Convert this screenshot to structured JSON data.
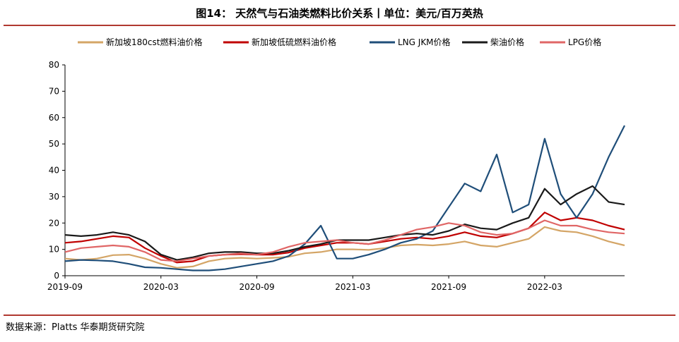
{
  "header": {
    "title": "图14：  天然气与石油类燃料比价关系丨单位：美元/百万英热"
  },
  "footer": {
    "source": "数据来源：Platts 华泰期货研究院"
  },
  "colors": {
    "rule": "#b0382f",
    "axis": "#000000"
  },
  "chart_data": {
    "type": "line",
    "title": "天然气与石油类燃料比价关系丨单位：美元/百万英热",
    "xlabel": "",
    "ylabel": "",
    "ylim": [
      0,
      80
    ],
    "yticks": [
      0,
      10,
      20,
      30,
      40,
      50,
      60,
      70,
      80
    ],
    "xlim": [
      "2019-09",
      "2022-08"
    ],
    "xticks": [
      "2019-09",
      "2020-03",
      "2020-09",
      "2021-03",
      "2021-09",
      "2022-03"
    ],
    "grid": false,
    "legend": "top",
    "series": [
      {
        "name": "新加坡180cst燃料油价格",
        "color": "#d4a566",
        "points": [
          [
            "2019-09",
            6.5
          ],
          [
            "2019-10",
            6.0
          ],
          [
            "2019-11",
            6.5
          ],
          [
            "2019-12",
            7.8
          ],
          [
            "2020-01",
            8.0
          ],
          [
            "2020-02",
            6.5
          ],
          [
            "2020-03",
            4.5
          ],
          [
            "2020-04",
            3.0
          ],
          [
            "2020-05",
            3.5
          ],
          [
            "2020-06",
            5.5
          ],
          [
            "2020-07",
            6.5
          ],
          [
            "2020-08",
            6.8
          ],
          [
            "2020-09",
            6.5
          ],
          [
            "2020-10",
            6.8
          ],
          [
            "2020-11",
            7.2
          ],
          [
            "2020-12",
            8.5
          ],
          [
            "2021-01",
            9.0
          ],
          [
            "2021-02",
            10.0
          ],
          [
            "2021-03",
            10.0
          ],
          [
            "2021-04",
            9.8
          ],
          [
            "2021-05",
            10.5
          ],
          [
            "2021-06",
            11.5
          ],
          [
            "2021-07",
            11.8
          ],
          [
            "2021-08",
            11.5
          ],
          [
            "2021-09",
            12.0
          ],
          [
            "2021-10",
            13.0
          ],
          [
            "2021-11",
            11.5
          ],
          [
            "2021-12",
            11.0
          ],
          [
            "2022-01",
            12.5
          ],
          [
            "2022-02",
            14.0
          ],
          [
            "2022-03",
            18.5
          ],
          [
            "2022-04",
            17.0
          ],
          [
            "2022-05",
            16.5
          ],
          [
            "2022-06",
            15.0
          ],
          [
            "2022-07",
            13.0
          ],
          [
            "2022-08",
            11.5
          ]
        ]
      },
      {
        "name": "新加坡低硫燃料油价格",
        "color": "#c00000",
        "points": [
          [
            "2019-09",
            12.5
          ],
          [
            "2019-10",
            13.0
          ],
          [
            "2019-11",
            14.0
          ],
          [
            "2019-12",
            15.0
          ],
          [
            "2020-01",
            14.5
          ],
          [
            "2020-02",
            10.5
          ],
          [
            "2020-03",
            7.5
          ],
          [
            "2020-04",
            5.0
          ],
          [
            "2020-05",
            5.5
          ],
          [
            "2020-06",
            7.5
          ],
          [
            "2020-07",
            8.0
          ],
          [
            "2020-08",
            8.2
          ],
          [
            "2020-09",
            8.0
          ],
          [
            "2020-10",
            8.0
          ],
          [
            "2020-11",
            8.8
          ],
          [
            "2020-12",
            10.5
          ],
          [
            "2021-01",
            11.5
          ],
          [
            "2021-02",
            12.5
          ],
          [
            "2021-03",
            12.5
          ],
          [
            "2021-04",
            12.0
          ],
          [
            "2021-05",
            13.0
          ],
          [
            "2021-06",
            14.0
          ],
          [
            "2021-07",
            14.5
          ],
          [
            "2021-08",
            14.0
          ],
          [
            "2021-09",
            15.0
          ],
          [
            "2021-10",
            16.5
          ],
          [
            "2021-11",
            15.0
          ],
          [
            "2021-12",
            14.5
          ],
          [
            "2022-01",
            16.0
          ],
          [
            "2022-02",
            18.0
          ],
          [
            "2022-03",
            24.0
          ],
          [
            "2022-04",
            21.0
          ],
          [
            "2022-05",
            22.0
          ],
          [
            "2022-06",
            21.0
          ],
          [
            "2022-07",
            19.0
          ],
          [
            "2022-08",
            17.5
          ]
        ]
      },
      {
        "name": "LNG JKM价格",
        "color": "#1f4e79",
        "points": [
          [
            "2019-09",
            5.5
          ],
          [
            "2019-10",
            6.0
          ],
          [
            "2019-11",
            5.8
          ],
          [
            "2019-12",
            5.5
          ],
          [
            "2020-01",
            4.5
          ],
          [
            "2020-02",
            3.2
          ],
          [
            "2020-03",
            3.0
          ],
          [
            "2020-04",
            2.5
          ],
          [
            "2020-05",
            2.0
          ],
          [
            "2020-06",
            2.0
          ],
          [
            "2020-07",
            2.5
          ],
          [
            "2020-08",
            3.5
          ],
          [
            "2020-09",
            4.5
          ],
          [
            "2020-10",
            5.5
          ],
          [
            "2020-11",
            7.5
          ],
          [
            "2020-12",
            12.0
          ],
          [
            "2021-01",
            19.0
          ],
          [
            "2021-02",
            6.5
          ],
          [
            "2021-03",
            6.5
          ],
          [
            "2021-04",
            8.0
          ],
          [
            "2021-05",
            10.0
          ],
          [
            "2021-06",
            12.5
          ],
          [
            "2021-07",
            14.0
          ],
          [
            "2021-08",
            17.0
          ],
          [
            "2021-09",
            26.0
          ],
          [
            "2021-10",
            35.0
          ],
          [
            "2021-11",
            32.0
          ],
          [
            "2021-12",
            46.0
          ],
          [
            "2022-01",
            24.0
          ],
          [
            "2022-02",
            27.0
          ],
          [
            "2022-03",
            52.0
          ],
          [
            "2022-04",
            31.0
          ],
          [
            "2022-05",
            22.0
          ],
          [
            "2022-06",
            31.0
          ],
          [
            "2022-07",
            45.0
          ],
          [
            "2022-08",
            57.0
          ]
        ]
      },
      {
        "name": "柴油价格",
        "color": "#1a1a1a",
        "points": [
          [
            "2019-09",
            15.5
          ],
          [
            "2019-10",
            15.0
          ],
          [
            "2019-11",
            15.5
          ],
          [
            "2019-12",
            16.5
          ],
          [
            "2020-01",
            15.5
          ],
          [
            "2020-02",
            13.0
          ],
          [
            "2020-03",
            8.0
          ],
          [
            "2020-04",
            6.0
          ],
          [
            "2020-05",
            7.0
          ],
          [
            "2020-06",
            8.5
          ],
          [
            "2020-07",
            9.0
          ],
          [
            "2020-08",
            9.0
          ],
          [
            "2020-09",
            8.5
          ],
          [
            "2020-10",
            8.5
          ],
          [
            "2020-11",
            9.5
          ],
          [
            "2020-12",
            11.0
          ],
          [
            "2021-01",
            12.0
          ],
          [
            "2021-02",
            13.5
          ],
          [
            "2021-03",
            13.5
          ],
          [
            "2021-04",
            13.5
          ],
          [
            "2021-05",
            14.5
          ],
          [
            "2021-06",
            15.5
          ],
          [
            "2021-07",
            16.0
          ],
          [
            "2021-08",
            15.5
          ],
          [
            "2021-09",
            17.0
          ],
          [
            "2021-10",
            19.5
          ],
          [
            "2021-11",
            18.0
          ],
          [
            "2021-12",
            17.5
          ],
          [
            "2022-01",
            20.0
          ],
          [
            "2022-02",
            22.0
          ],
          [
            "2022-03",
            33.0
          ],
          [
            "2022-04",
            27.0
          ],
          [
            "2022-05",
            31.0
          ],
          [
            "2022-06",
            34.0
          ],
          [
            "2022-07",
            28.0
          ],
          [
            "2022-08",
            27.0
          ]
        ]
      },
      {
        "name": "LPG价格",
        "color": "#e06666",
        "points": [
          [
            "2019-09",
            9.0
          ],
          [
            "2019-10",
            10.5
          ],
          [
            "2019-11",
            11.0
          ],
          [
            "2019-12",
            11.5
          ],
          [
            "2020-01",
            11.0
          ],
          [
            "2020-02",
            9.0
          ],
          [
            "2020-03",
            6.0
          ],
          [
            "2020-04",
            5.5
          ],
          [
            "2020-05",
            6.5
          ],
          [
            "2020-06",
            7.5
          ],
          [
            "2020-07",
            8.0
          ],
          [
            "2020-08",
            8.5
          ],
          [
            "2020-09",
            8.0
          ],
          [
            "2020-10",
            9.0
          ],
          [
            "2020-11",
            11.0
          ],
          [
            "2020-12",
            12.5
          ],
          [
            "2021-01",
            13.0
          ],
          [
            "2021-02",
            13.5
          ],
          [
            "2021-03",
            12.5
          ],
          [
            "2021-04",
            12.0
          ],
          [
            "2021-05",
            13.5
          ],
          [
            "2021-06",
            15.5
          ],
          [
            "2021-07",
            17.5
          ],
          [
            "2021-08",
            18.5
          ],
          [
            "2021-09",
            20.0
          ],
          [
            "2021-10",
            19.0
          ],
          [
            "2021-11",
            16.5
          ],
          [
            "2021-12",
            15.5
          ],
          [
            "2022-01",
            16.0
          ],
          [
            "2022-02",
            18.0
          ],
          [
            "2022-03",
            21.0
          ],
          [
            "2022-04",
            19.0
          ],
          [
            "2022-05",
            19.0
          ],
          [
            "2022-06",
            17.5
          ],
          [
            "2022-07",
            16.5
          ],
          [
            "2022-08",
            16.0
          ]
        ]
      }
    ]
  }
}
